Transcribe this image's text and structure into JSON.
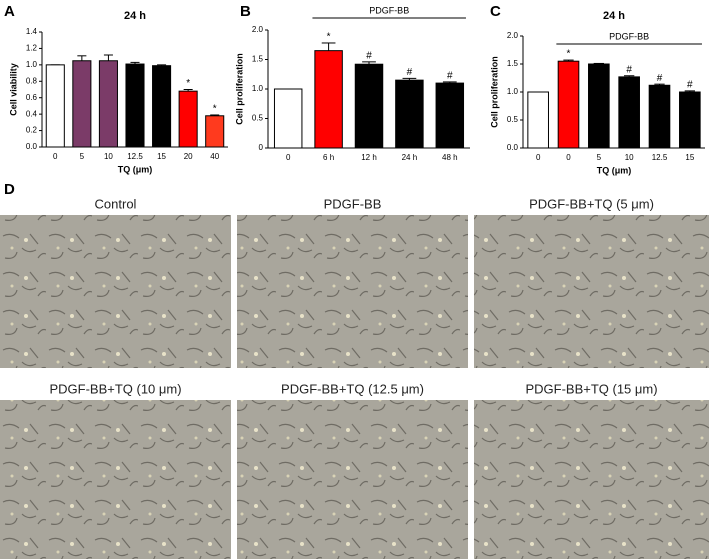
{
  "chart_data": [
    {
      "type": "bar",
      "label": "A",
      "title": "24 h",
      "xlabel": "TQ (μm)",
      "ylabel": "Cell viability",
      "categories": [
        "0",
        "5",
        "10",
        "12.5",
        "15",
        "20",
        "40"
      ],
      "values": [
        1.0,
        1.05,
        1.05,
        1.01,
        0.99,
        0.68,
        0.38
      ],
      "error": [
        0,
        0.06,
        0.07,
        0.02,
        0.01,
        0.02,
        0.01
      ],
      "colors": [
        "#ffffff",
        "#7b3b68",
        "#7b3b68",
        "#000000",
        "#000000",
        "#ff0000",
        "#ff3a1e"
      ],
      "annotations": [
        null,
        null,
        null,
        null,
        null,
        "*",
        "*"
      ],
      "ylim": [
        0,
        1.4
      ],
      "yticks": [
        {
          "value": 0,
          "label": "0.0"
        },
        0.2,
        0.4,
        0.6,
        0.8,
        {
          "value": 1,
          "label": "1.0"
        },
        1.2,
        1.4
      ]
    },
    {
      "type": "bar",
      "label": "B",
      "ylabel": "Cell proliferation",
      "bracket": "PDGF-BB",
      "categories": [
        "0",
        "6 h",
        "12 h",
        "24 h",
        "48 h"
      ],
      "values": [
        1.0,
        1.65,
        1.42,
        1.15,
        1.1
      ],
      "error": [
        0,
        0.13,
        0.04,
        0.03,
        0.02
      ],
      "colors": [
        "#ffffff",
        "#ff0000",
        "#000000",
        "#000000",
        "#000000"
      ],
      "annotations": [
        null,
        "*",
        "#",
        "#",
        "#"
      ],
      "ylim": [
        0,
        2
      ],
      "yticks": [
        0,
        0.5,
        {
          "value": 1,
          "label": "1.0"
        },
        1.5,
        {
          "value": 2,
          "label": "2.0"
        }
      ]
    },
    {
      "type": "bar",
      "label": "C",
      "title": "24 h",
      "xlabel": "TQ (μm)",
      "ylabel": "Cell proliferation",
      "bracket": "PDGF-BB",
      "categories": [
        "0",
        "0",
        "5",
        "10",
        "12.5",
        "15"
      ],
      "values": [
        1.0,
        1.55,
        1.5,
        1.27,
        1.12,
        1.0
      ],
      "error": [
        0,
        0.02,
        0.01,
        0.02,
        0.02,
        0.02
      ],
      "colors": [
        "#ffffff",
        "#ff0000",
        "#000000",
        "#000000",
        "#000000",
        "#000000"
      ],
      "annotations": [
        null,
        "*",
        null,
        "#",
        "#",
        "#"
      ],
      "ylim": [
        0,
        2
      ],
      "yticks": [
        {
          "value": 0,
          "label": "0.0"
        },
        0.5,
        {
          "value": 1,
          "label": "1.0"
        },
        1.5,
        {
          "value": 2,
          "label": "2.0"
        }
      ]
    }
  ],
  "micrographs": {
    "label": "D",
    "captions": [
      "Control",
      "PDGF-BB",
      "PDGF-BB+TQ (5 μm)",
      "PDGF-BB+TQ (10 μm)",
      "PDGF-BB+TQ (12.5 μm)",
      "PDGF-BB+TQ (15 μm)"
    ]
  }
}
